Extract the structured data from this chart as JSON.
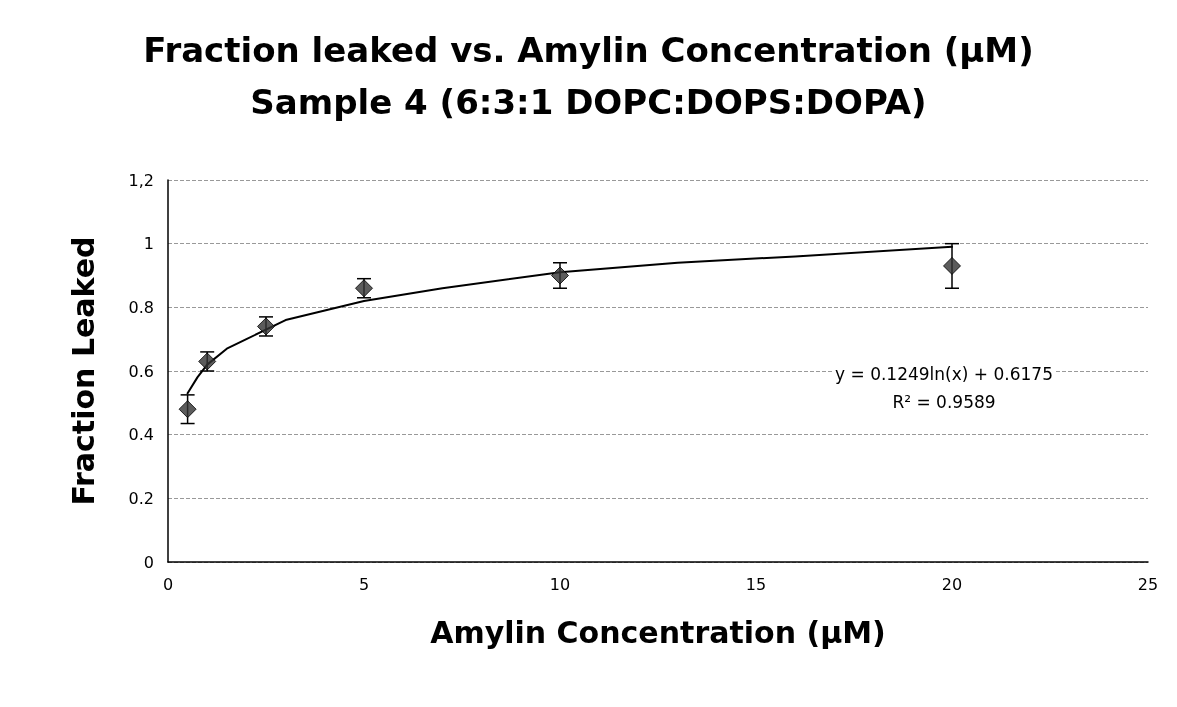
{
  "chart_data": {
    "type": "scatter",
    "title": "Fraction leaked vs. Amylin Concentration (μM)",
    "subtitle": "Sample 4 (6:3:1 DOPC:DOPS:DOPA)",
    "xlabel": "Amylin Concentration (μM)",
    "ylabel": "Fraction Leaked",
    "xlim": [
      0,
      25
    ],
    "xticks": [
      0,
      5,
      10,
      15,
      20,
      25
    ],
    "ylim": [
      0,
      1.2
    ],
    "yticks": [
      0,
      {
        "value": 0.2,
        "label": "0.2"
      },
      {
        "value": 0.4,
        "label": "0.4"
      },
      {
        "value": 0.6,
        "label": "0.6"
      },
      {
        "value": 0.8,
        "label": "0.8"
      },
      1,
      {
        "value": 1.2,
        "label": "1,2"
      }
    ],
    "grid": "y",
    "marker": "diamond",
    "series": [
      {
        "color": "#333333",
        "x": [
          0.5,
          1,
          2.5,
          5,
          10,
          20
        ],
        "values": [
          0.48,
          0.63,
          0.74,
          0.86,
          0.9,
          0.93
        ],
        "errors": [
          0.045,
          0.03,
          0.03,
          0.03,
          0.04,
          0.07
        ]
      },
      {
        "type": "line",
        "color": "#000000",
        "marker": "none",
        "line_style": "solid",
        "x": [
          0.5,
          0.75,
          1,
          1.5,
          2,
          3,
          4,
          5,
          7,
          10,
          13,
          16,
          20
        ],
        "values": [
          0.53,
          0.58,
          0.62,
          0.67,
          0.7,
          0.76,
          0.79,
          0.82,
          0.86,
          0.91,
          0.94,
          0.96,
          0.99
        ]
      }
    ],
    "annotations": [
      "y = 0.1249ln(x) + 0.6175",
      "R² = 0.9589"
    ]
  }
}
